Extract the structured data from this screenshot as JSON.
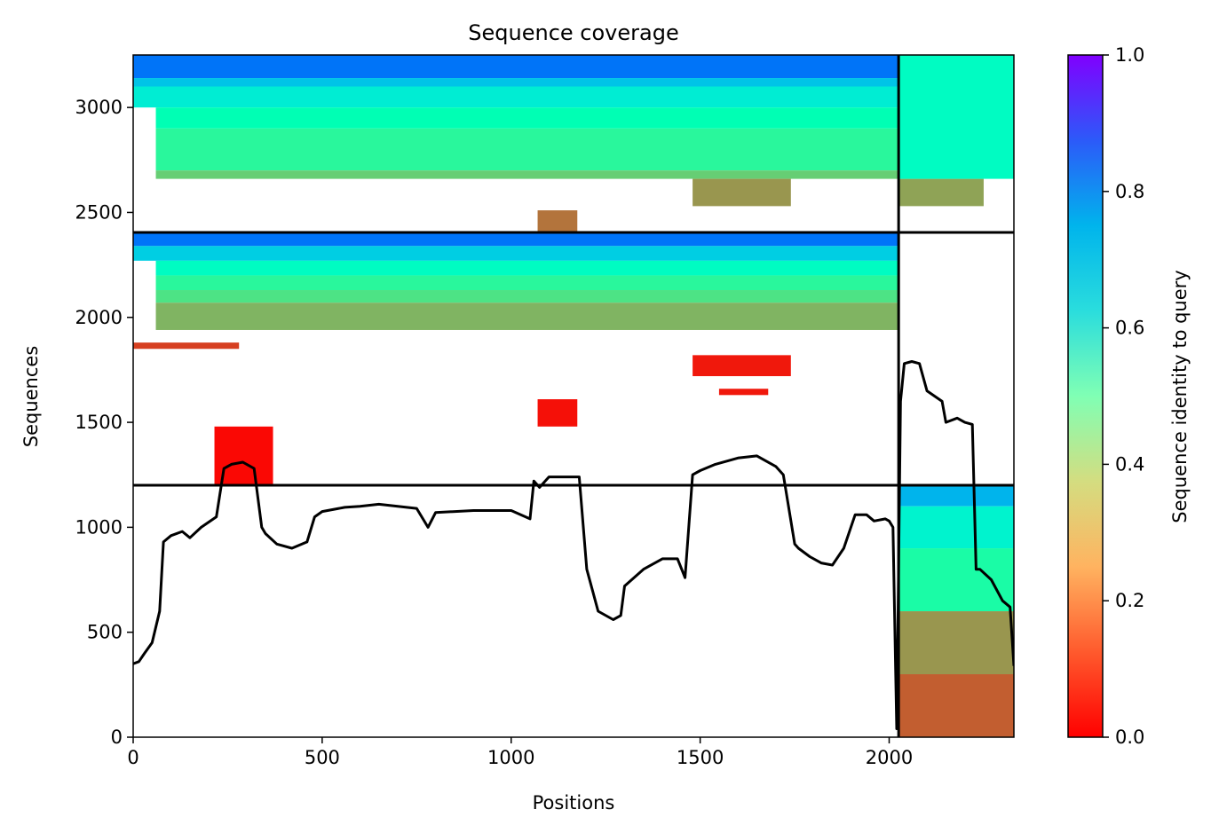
{
  "chart_data": {
    "type": "heatmap",
    "title": "Sequence coverage",
    "xlabel": "Positions",
    "ylabel": "Sequences",
    "xlim": [
      0,
      2330
    ],
    "ylim": [
      0,
      3250
    ],
    "x_ticks": [
      "0",
      "500",
      "1000",
      "1500",
      "2000"
    ],
    "x_tick_values": [
      0,
      500,
      1000,
      1500,
      2000
    ],
    "y_ticks": [
      "0",
      "500",
      "1000",
      "1500",
      "2000",
      "2500",
      "3000"
    ],
    "y_tick_values": [
      0,
      500,
      1000,
      1500,
      2000,
      2500,
      3000
    ],
    "colorbar": {
      "label": "Sequence identity to query",
      "colormap": "rainbow_r",
      "range": [
        0.0,
        1.0
      ],
      "ticks": [
        "0.0",
        "0.2",
        "0.4",
        "0.6",
        "0.8",
        "1.0"
      ],
      "tick_values": [
        0.0,
        0.2,
        0.4,
        0.6,
        0.8,
        1.0
      ]
    },
    "block_separators": {
      "vertical_x": [
        2025
      ],
      "horizontal_y": [
        1200,
        2405
      ]
    },
    "blocks": [
      {
        "x": [
          0,
          2025
        ],
        "y": [
          2405,
          3250
        ]
      },
      {
        "x": [
          2025,
          2330
        ],
        "y": [
          2405,
          3250
        ]
      },
      {
        "x": [
          0,
          2025
        ],
        "y": [
          1200,
          2405
        ]
      },
      {
        "x": [
          2025,
          2330
        ],
        "y": [
          1200,
          2405
        ]
      },
      {
        "x": [
          0,
          2025
        ],
        "y": [
          0,
          1200
        ]
      },
      {
        "x": [
          2025,
          2330
        ],
        "y": [
          0,
          1200
        ]
      }
    ],
    "coverage_bands": [
      {
        "x": [
          0,
          2025
        ],
        "y": [
          3140,
          3250
        ],
        "identity": 0.85
      },
      {
        "x": [
          0,
          2025
        ],
        "y": [
          3100,
          3140
        ],
        "identity": 0.72
      },
      {
        "x": [
          0,
          2025
        ],
        "y": [
          3000,
          3100
        ],
        "identity": 0.62
      },
      {
        "x": [
          60,
          2025
        ],
        "y": [
          2900,
          3000
        ],
        "identity": 0.5
      },
      {
        "x": [
          60,
          2025
        ],
        "y": [
          2700,
          2900
        ],
        "identity": 0.42
      },
      {
        "x": [
          60,
          2025
        ],
        "y": [
          2660,
          2700
        ],
        "identity": 0.3
      },
      {
        "x": [
          1480,
          1740
        ],
        "y": [
          2530,
          2660
        ],
        "identity": 0.2
      },
      {
        "x": [
          1070,
          1175
        ],
        "y": [
          2410,
          2510
        ],
        "identity": 0.15
      },
      {
        "x": [
          0,
          2025
        ],
        "y": [
          2340,
          2405
        ],
        "identity": 0.85
      },
      {
        "x": [
          0,
          2025
        ],
        "y": [
          2270,
          2340
        ],
        "identity": 0.7
      },
      {
        "x": [
          60,
          2025
        ],
        "y": [
          2200,
          2270
        ],
        "identity": 0.55
      },
      {
        "x": [
          60,
          2025
        ],
        "y": [
          2130,
          2200
        ],
        "identity": 0.42
      },
      {
        "x": [
          60,
          2025
        ],
        "y": [
          2070,
          2130
        ],
        "identity": 0.35
      },
      {
        "x": [
          60,
          2025
        ],
        "y": [
          1940,
          2070
        ],
        "identity": 0.25
      },
      {
        "x": [
          0,
          280
        ],
        "y": [
          1850,
          1880
        ],
        "identity": 0.08
      },
      {
        "x": [
          1480,
          1740
        ],
        "y": [
          1720,
          1820
        ],
        "identity": 0.03
      },
      {
        "x": [
          1550,
          1680
        ],
        "y": [
          1630,
          1660
        ],
        "identity": 0.03
      },
      {
        "x": [
          1070,
          1175
        ],
        "y": [
          1480,
          1610
        ],
        "identity": 0.02
      },
      {
        "x": [
          215,
          370
        ],
        "y": [
          1200,
          1480
        ],
        "identity": 0.01
      },
      {
        "x": [
          2025,
          2330
        ],
        "y": [
          1100,
          1200
        ],
        "identity": 0.75
      },
      {
        "x": [
          2025,
          2330
        ],
        "y": [
          900,
          1100
        ],
        "identity": 0.6
      },
      {
        "x": [
          2025,
          2330
        ],
        "y": [
          600,
          900
        ],
        "identity": 0.45
      },
      {
        "x": [
          2025,
          2330
        ],
        "y": [
          300,
          600
        ],
        "identity": 0.2
      },
      {
        "x": [
          2025,
          2330
        ],
        "y": [
          0,
          300
        ],
        "identity": 0.12
      },
      {
        "x": [
          2025,
          2250
        ],
        "y": [
          2530,
          2660
        ],
        "identity": 0.22
      },
      {
        "x": [
          2025,
          2330
        ],
        "y": [
          2660,
          3250
        ],
        "identity": 0.55
      }
    ],
    "coverage_line": {
      "x": [
        0,
        15,
        30,
        50,
        70,
        80,
        100,
        130,
        150,
        180,
        220,
        240,
        260,
        290,
        320,
        340,
        350,
        380,
        420,
        460,
        480,
        500,
        560,
        600,
        650,
        750,
        780,
        800,
        900,
        1000,
        1050,
        1060,
        1075,
        1100,
        1120,
        1150,
        1180,
        1200,
        1230,
        1270,
        1290,
        1300,
        1350,
        1400,
        1440,
        1460,
        1480,
        1500,
        1540,
        1600,
        1650,
        1700,
        1720,
        1750,
        1760,
        1790,
        1820,
        1850,
        1880,
        1910,
        1940,
        1960,
        1990,
        2000,
        2010,
        2020,
        2030,
        2040,
        2060,
        2080,
        2100,
        2140,
        2150,
        2180,
        2200,
        2220,
        2230,
        2240,
        2270,
        2300,
        2320,
        2330
      ],
      "y": [
        350,
        360,
        400,
        450,
        600,
        930,
        960,
        980,
        950,
        1000,
        1050,
        1280,
        1300,
        1310,
        1280,
        1000,
        970,
        920,
        900,
        930,
        1050,
        1075,
        1095,
        1100,
        1110,
        1090,
        1000,
        1070,
        1080,
        1080,
        1040,
        1220,
        1190,
        1240,
        1240,
        1240,
        1240,
        800,
        600,
        560,
        580,
        720,
        800,
        850,
        850,
        760,
        1250,
        1270,
        1300,
        1330,
        1340,
        1290,
        1250,
        920,
        900,
        860,
        830,
        820,
        900,
        1060,
        1060,
        1030,
        1040,
        1030,
        1000,
        40,
        1600,
        1780,
        1790,
        1780,
        1650,
        1600,
        1500,
        1520,
        1500,
        1490,
        800,
        800,
        750,
        650,
        620,
        340
      ]
    }
  }
}
